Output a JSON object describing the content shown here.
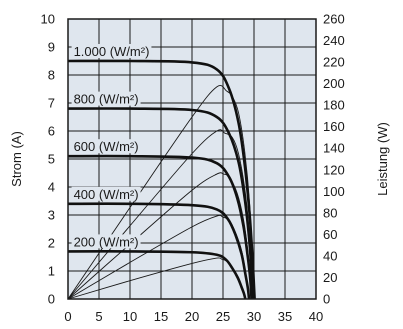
{
  "chart_data": {
    "type": "line",
    "title": "",
    "xlabel": "",
    "ylabel": "Strom (A)",
    "y2label": "Leistung (W)",
    "xlim": [
      0,
      40
    ],
    "ylim": [
      0,
      10
    ],
    "y2lim": [
      0,
      260
    ],
    "x_ticks": [
      "0",
      "5",
      "10",
      "15",
      "20",
      "25",
      "30",
      "35",
      "40"
    ],
    "y_ticks": [
      "0",
      "1",
      "2",
      "3",
      "4",
      "5",
      "6",
      "7",
      "8",
      "9",
      "10"
    ],
    "y2_ticks": [
      "0",
      "20",
      "40",
      "60",
      "80",
      "100",
      "120",
      "140",
      "160",
      "180",
      "200",
      "220",
      "240",
      "260"
    ],
    "grid": true,
    "background": "#dfe6ee",
    "series": [
      {
        "name": "1.000 (W/m²)",
        "current_values": {
          "x": [
            0,
            10,
            20,
            24,
            26,
            27.5,
            28.5,
            29.3,
            29.8,
            30.1
          ],
          "y": [
            8.5,
            8.5,
            8.45,
            8.2,
            7.5,
            6.3,
            4.8,
            3.0,
            1.3,
            0
          ]
        },
        "power_values": {
          "x": [
            0,
            10,
            20,
            24,
            25.6,
            26.5,
            27.5,
            28.5,
            29.3,
            30.1
          ],
          "y": [
            0,
            85,
            169,
            197,
            193,
            188,
            173,
            137,
            88,
            0
          ]
        }
      },
      {
        "name": "800 (W/m²)",
        "current_values": {
          "x": [
            0,
            10,
            20,
            24,
            26,
            27.5,
            28.5,
            29.2,
            29.6,
            29.9
          ],
          "y": [
            6.8,
            6.8,
            6.75,
            6.5,
            5.9,
            4.9,
            3.6,
            2.2,
            1.0,
            0
          ]
        },
        "power_values": {
          "x": [
            0,
            10,
            20,
            24,
            25.3,
            26.5,
            27.5,
            28.5,
            29.2,
            29.9
          ],
          "y": [
            0,
            68,
            135,
            156,
            154,
            150,
            135,
            103,
            64,
            0
          ]
        }
      },
      {
        "name": "600 (W/m²)",
        "current_values": {
          "x": [
            0,
            10,
            20,
            24,
            26,
            27.3,
            28.3,
            29.0,
            29.4,
            29.6
          ],
          "y": [
            5.1,
            5.1,
            5.05,
            4.85,
            4.35,
            3.6,
            2.6,
            1.5,
            0.7,
            0
          ]
        },
        "power_values": {
          "x": [
            0,
            10,
            20,
            24,
            25.1,
            26,
            27.3,
            28.3,
            29.0,
            29.6
          ],
          "y": [
            0,
            51,
            101,
            116,
            116,
            113,
            98,
            74,
            44,
            0
          ]
        }
      },
      {
        "name": "400 (W/m²)",
        "current_values": {
          "x": [
            0,
            10,
            20,
            24,
            25.8,
            27,
            28.0,
            28.6,
            29.0,
            29.2
          ],
          "y": [
            3.4,
            3.4,
            3.35,
            3.2,
            2.85,
            2.3,
            1.6,
            0.9,
            0.4,
            0
          ]
        },
        "power_values": {
          "x": [
            0,
            10,
            20,
            24,
            25,
            26,
            27,
            28.0,
            28.6,
            29.2
          ],
          "y": [
            0,
            34,
            67,
            77,
            76,
            73,
            62,
            45,
            26,
            0
          ]
        }
      },
      {
        "name": "200 (W/m²)",
        "current_values": {
          "x": [
            0,
            10,
            20,
            24,
            25.5,
            26.5,
            27.4,
            28.0,
            28.4,
            28.6
          ],
          "y": [
            1.7,
            1.7,
            1.67,
            1.58,
            1.4,
            1.1,
            0.75,
            0.42,
            0.18,
            0
          ]
        },
        "power_values": {
          "x": [
            0,
            10,
            20,
            24,
            24.8,
            25.6,
            26.5,
            27.4,
            28.0,
            28.6
          ],
          "y": [
            0,
            17,
            33,
            38,
            37,
            35,
            29,
            21,
            12,
            0
          ]
        }
      }
    ]
  }
}
